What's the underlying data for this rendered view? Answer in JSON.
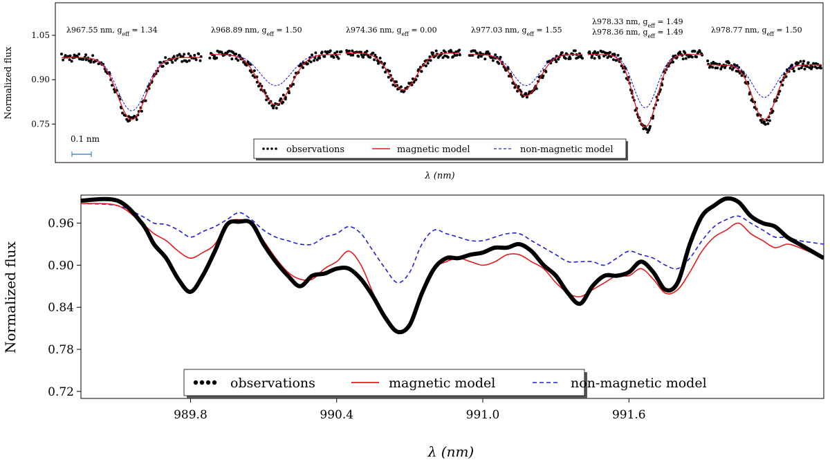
{
  "colors": {
    "observations": "#000000",
    "magnetic_model": "#e41a1c",
    "non_magnetic_model": "#1f1fdc",
    "scale_bar": "#1f77b4"
  },
  "chart_data": [
    {
      "type": "line",
      "panel": "top",
      "xlabel": "λ (nm)",
      "ylabel": "Normalized flux",
      "yticks": [
        0.75,
        0.9,
        1.05
      ],
      "ylim": [
        0.62,
        1.16
      ],
      "grid": false,
      "scale_bar_label": "0.1 nm",
      "legend": {
        "placement": "bottom-center",
        "entries": [
          "observations",
          "magnetic model",
          "non-magnetic model"
        ]
      },
      "segments": [
        {
          "line": "λ967.55 nm",
          "g_eff": "1.34",
          "obs_depth": 0.76,
          "mag_depth": 0.765,
          "nonmag_depth": 0.795,
          "continuum": 0.975,
          "width": 0.26
        },
        {
          "line": "λ968.89 nm",
          "g_eff": "1.50",
          "obs_depth": 0.815,
          "mag_depth": 0.815,
          "nonmag_depth": 0.88,
          "continuum": 0.985,
          "width": 0.3
        },
        {
          "line": "λ974.36 nm",
          "g_eff": "0.00",
          "obs_depth": 0.865,
          "mag_depth": 0.865,
          "nonmag_depth": 0.865,
          "continuum": 0.99,
          "width": 0.3
        },
        {
          "line": "λ977.03 nm",
          "g_eff": "1.55",
          "obs_depth": 0.845,
          "mag_depth": 0.845,
          "nonmag_depth": 0.88,
          "continuum": 0.985,
          "width": 0.3
        },
        {
          "line": "λ978.33 nm, g_eff = 1.49 / λ978.36 nm",
          "g_eff": "1.49",
          "obs_depth": 0.73,
          "mag_depth": 0.74,
          "nonmag_depth": 0.805,
          "continuum": 0.985,
          "width": 0.26
        },
        {
          "line": "λ978.77 nm",
          "g_eff": "1.50",
          "obs_depth": 0.755,
          "mag_depth": 0.765,
          "nonmag_depth": 0.84,
          "continuum": 0.95,
          "width": 0.26
        }
      ],
      "annotations": [
        {
          "line": "λ967.55 nm",
          "g_eff": "1.34"
        },
        {
          "line": "λ968.89 nm",
          "g_eff": "1.50"
        },
        {
          "line": "λ974.36 nm",
          "g_eff": "0.00"
        },
        {
          "line": "λ977.03 nm",
          "g_eff": "1.55"
        },
        {
          "line": "λ978.33 nm",
          "g_eff": "1.49"
        },
        {
          "line": "λ978.36 nm",
          "g_eff": "1.49"
        },
        {
          "line": "λ978.77 nm",
          "g_eff": "1.50"
        }
      ]
    },
    {
      "type": "line",
      "panel": "bottom",
      "xlabel": "λ (nm)",
      "ylabel": "Normalized flux",
      "xlim": [
        989.35,
        992.4
      ],
      "ylim": [
        0.71,
        1.0
      ],
      "xticks": [
        "989.8",
        "990.4",
        "991.0",
        "991.6"
      ],
      "xtick_values": [
        989.8,
        990.4,
        991.0,
        991.6
      ],
      "yticks": [
        "0.72",
        "0.78",
        "0.84",
        "0.90",
        "0.96"
      ],
      "ytick_values": [
        0.72,
        0.78,
        0.84,
        0.9,
        0.96
      ],
      "grid": false,
      "legend": {
        "placement": "bottom-center",
        "entries": [
          "observations",
          "magnetic model",
          "non-magnetic model"
        ]
      },
      "series": [
        {
          "name": "observations",
          "x": [
            989.35,
            989.5,
            989.6,
            989.65,
            989.7,
            989.75,
            989.8,
            989.85,
            989.9,
            989.95,
            990.0,
            990.05,
            990.1,
            990.15,
            990.2,
            990.25,
            990.3,
            990.35,
            990.4,
            990.45,
            990.5,
            990.55,
            990.6,
            990.65,
            990.7,
            990.75,
            990.8,
            990.85,
            990.9,
            990.95,
            991.0,
            991.05,
            991.1,
            991.15,
            991.2,
            991.25,
            991.3,
            991.35,
            991.4,
            991.45,
            991.5,
            991.55,
            991.6,
            991.65,
            991.7,
            991.75,
            991.8,
            991.85,
            991.9,
            991.95,
            992.0,
            992.05,
            992.1,
            992.15,
            992.2,
            992.25,
            992.3,
            992.4
          ],
          "y": [
            0.992,
            0.992,
            0.96,
            0.93,
            0.91,
            0.88,
            0.862,
            0.885,
            0.92,
            0.958,
            0.962,
            0.96,
            0.93,
            0.905,
            0.885,
            0.87,
            0.885,
            0.888,
            0.895,
            0.895,
            0.88,
            0.855,
            0.825,
            0.805,
            0.815,
            0.86,
            0.895,
            0.91,
            0.91,
            0.915,
            0.918,
            0.925,
            0.925,
            0.93,
            0.92,
            0.9,
            0.885,
            0.86,
            0.845,
            0.87,
            0.885,
            0.885,
            0.89,
            0.905,
            0.89,
            0.865,
            0.875,
            0.93,
            0.97,
            0.985,
            0.995,
            0.99,
            0.97,
            0.96,
            0.955,
            0.94,
            0.93,
            0.91
          ]
        },
        {
          "name": "magnetic model",
          "x": [
            989.35,
            989.5,
            989.6,
            989.65,
            989.7,
            989.75,
            989.8,
            989.85,
            989.9,
            989.95,
            990.0,
            990.05,
            990.1,
            990.15,
            990.2,
            990.25,
            990.3,
            990.35,
            990.4,
            990.45,
            990.5,
            990.55,
            990.6,
            990.65,
            990.7,
            990.75,
            990.8,
            990.85,
            990.9,
            990.95,
            991.0,
            991.05,
            991.1,
            991.15,
            991.2,
            991.25,
            991.3,
            991.35,
            991.4,
            991.45,
            991.5,
            991.55,
            991.6,
            991.65,
            991.7,
            991.75,
            991.8,
            991.85,
            991.9,
            991.95,
            992.0,
            992.05,
            992.1,
            992.15,
            992.2,
            992.25,
            992.3,
            992.4
          ],
          "y": [
            0.988,
            0.985,
            0.96,
            0.945,
            0.935,
            0.92,
            0.91,
            0.918,
            0.93,
            0.96,
            0.965,
            0.96,
            0.935,
            0.91,
            0.89,
            0.88,
            0.88,
            0.895,
            0.905,
            0.92,
            0.9,
            0.86,
            0.825,
            0.805,
            0.815,
            0.86,
            0.895,
            0.905,
            0.91,
            0.905,
            0.9,
            0.905,
            0.915,
            0.915,
            0.905,
            0.895,
            0.875,
            0.86,
            0.855,
            0.865,
            0.875,
            0.885,
            0.885,
            0.895,
            0.88,
            0.86,
            0.865,
            0.89,
            0.92,
            0.94,
            0.95,
            0.96,
            0.945,
            0.935,
            0.925,
            0.93,
            0.925,
            0.91
          ]
        },
        {
          "name": "non-magnetic model",
          "x": [
            989.35,
            989.5,
            989.6,
            989.65,
            989.7,
            989.75,
            989.8,
            989.85,
            989.9,
            989.95,
            990.0,
            990.05,
            990.1,
            990.15,
            990.2,
            990.25,
            990.3,
            990.35,
            990.4,
            990.45,
            990.5,
            990.55,
            990.6,
            990.65,
            990.7,
            990.75,
            990.8,
            990.85,
            990.9,
            990.95,
            991.0,
            991.05,
            991.1,
            991.15,
            991.2,
            991.25,
            991.3,
            991.35,
            991.4,
            991.45,
            991.5,
            991.55,
            991.6,
            991.65,
            991.7,
            991.75,
            991.8,
            991.85,
            991.9,
            991.95,
            992.0,
            992.05,
            992.1,
            992.15,
            992.2,
            992.25,
            992.3,
            992.4
          ],
          "y": [
            0.988,
            0.985,
            0.97,
            0.96,
            0.958,
            0.95,
            0.94,
            0.948,
            0.955,
            0.965,
            0.975,
            0.965,
            0.95,
            0.94,
            0.935,
            0.93,
            0.93,
            0.94,
            0.945,
            0.955,
            0.945,
            0.92,
            0.895,
            0.875,
            0.89,
            0.93,
            0.95,
            0.945,
            0.94,
            0.935,
            0.935,
            0.94,
            0.945,
            0.945,
            0.935,
            0.925,
            0.915,
            0.905,
            0.905,
            0.905,
            0.9,
            0.91,
            0.92,
            0.915,
            0.91,
            0.9,
            0.895,
            0.91,
            0.935,
            0.955,
            0.965,
            0.97,
            0.96,
            0.95,
            0.94,
            0.94,
            0.935,
            0.93
          ]
        }
      ]
    }
  ]
}
